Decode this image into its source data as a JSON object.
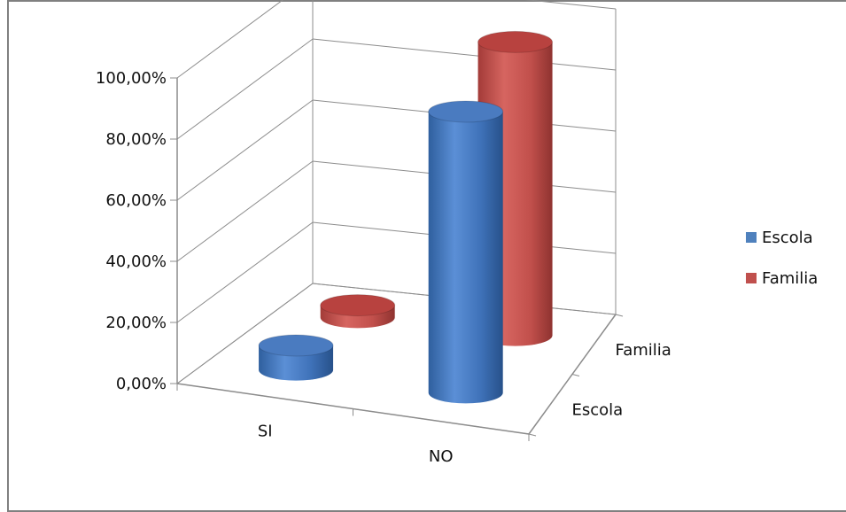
{
  "chart_data": {
    "type": "bar",
    "subtype": "3d-cylinder",
    "categories": [
      "SI",
      "NO"
    ],
    "depth_categories": [
      "Escola",
      "Familia"
    ],
    "series": [
      {
        "name": "Escola",
        "values": [
          8,
          92
        ],
        "color": "#4F81BD"
      },
      {
        "name": "Familia",
        "values": [
          4,
          96
        ],
        "color": "#C0504D"
      }
    ],
    "y_tick_labels": [
      "0,00%",
      "20,00%",
      "40,00%",
      "60,00%",
      "80,00%",
      "100,00%"
    ],
    "ylim": [
      0,
      100
    ],
    "grid": true,
    "legend_position": "right"
  }
}
